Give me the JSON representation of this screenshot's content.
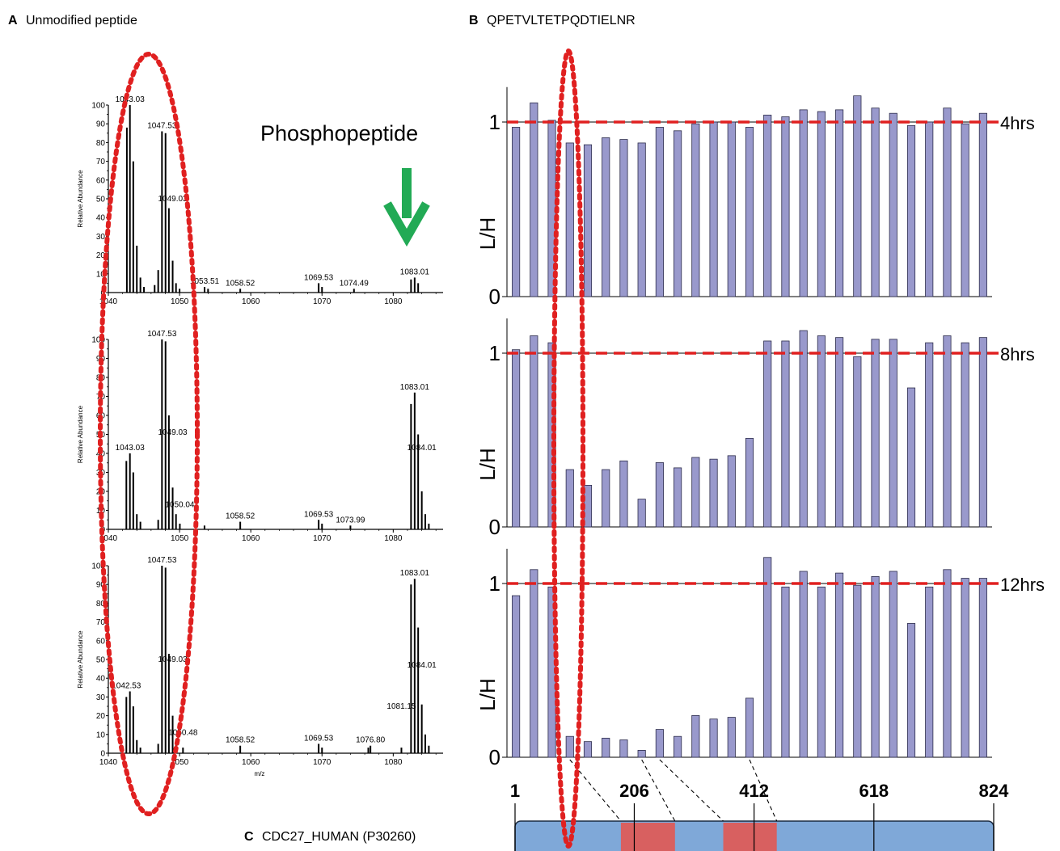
{
  "panels": {
    "a": {
      "letter": "A",
      "title": "Unmodified peptide"
    },
    "b": {
      "letter": "B",
      "title": "QPETVLTETPQDTIELNR"
    },
    "c": {
      "letter": "C",
      "title": "CDC27_HUMAN (P30260)"
    }
  },
  "annotation": {
    "phospho_label": "Phosphopeptide",
    "arrow_color": "#22aa55"
  },
  "colors": {
    "bar": "#9999cc",
    "bar_edge": "#2b2b4a",
    "ref_line": "#e02020",
    "ellipse": "#e02020",
    "protein": "#7fa8d8",
    "domain": "#d86060"
  },
  "chart_data": [
    {
      "type": "bar",
      "subtype": "mass-spectrum",
      "panel": "A-top",
      "xlabel": "",
      "ylabel": "Relative Abundance",
      "xlim": [
        1040,
        1087
      ],
      "ylim": [
        0,
        100
      ],
      "xticks": [
        "1040",
        "1050",
        "1060",
        "1070",
        "1080"
      ],
      "yticks": [
        "0",
        "10",
        "20",
        "30",
        "40",
        "50",
        "60",
        "70",
        "80",
        "90",
        "100"
      ],
      "peaks": [
        [
          1042.6,
          88
        ],
        [
          1043.03,
          100
        ],
        [
          1043.5,
          70
        ],
        [
          1044.0,
          25
        ],
        [
          1044.5,
          8
        ],
        [
          1045.0,
          3
        ],
        [
          1046.5,
          4
        ],
        [
          1047.0,
          12
        ],
        [
          1047.53,
          86
        ],
        [
          1048.03,
          85
        ],
        [
          1048.5,
          45
        ],
        [
          1049.03,
          17
        ],
        [
          1049.5,
          5
        ],
        [
          1050.0,
          2
        ],
        [
          1053.51,
          3
        ],
        [
          1054.0,
          2
        ],
        [
          1058.52,
          2
        ],
        [
          1069.53,
          5
        ],
        [
          1070.0,
          3
        ],
        [
          1074.49,
          2
        ],
        [
          1082.5,
          7
        ],
        [
          1083.01,
          8
        ],
        [
          1083.5,
          5
        ]
      ],
      "peak_labels": [
        [
          "1043.03",
          1043.03,
          100
        ],
        [
          "1047.53",
          1047.53,
          86
        ],
        [
          "1049.03",
          1049.03,
          47
        ],
        [
          "1053.51",
          1053.51,
          3
        ],
        [
          "1058.52",
          1058.52,
          2
        ],
        [
          "1069.53",
          1069.53,
          5
        ],
        [
          "1074.49",
          1074.49,
          2
        ],
        [
          "1083.01",
          1083.01,
          8
        ]
      ]
    },
    {
      "type": "bar",
      "subtype": "mass-spectrum",
      "panel": "A-middle",
      "xlabel": "",
      "ylabel": "Relative Abundance",
      "xlim": [
        1040,
        1087
      ],
      "ylim": [
        0,
        100
      ],
      "xticks": [
        "1040",
        "1050",
        "1060",
        "1070",
        "1080"
      ],
      "yticks": [
        "0",
        "10",
        "20",
        "30",
        "40",
        "50",
        "60",
        "70",
        "80",
        "90",
        "100"
      ],
      "peaks": [
        [
          1042.53,
          36
        ],
        [
          1043.03,
          40
        ],
        [
          1043.5,
          30
        ],
        [
          1044.0,
          8
        ],
        [
          1044.5,
          4
        ],
        [
          1047.0,
          5
        ],
        [
          1047.53,
          100
        ],
        [
          1048.03,
          99
        ],
        [
          1048.5,
          60
        ],
        [
          1049.03,
          22
        ],
        [
          1049.5,
          8
        ],
        [
          1050.04,
          3
        ],
        [
          1053.5,
          2
        ],
        [
          1058.52,
          4
        ],
        [
          1069.53,
          5
        ],
        [
          1070.0,
          3
        ],
        [
          1073.99,
          2
        ],
        [
          1082.5,
          66
        ],
        [
          1083.01,
          72
        ],
        [
          1083.5,
          50
        ],
        [
          1084.01,
          20
        ],
        [
          1084.5,
          8
        ],
        [
          1085.0,
          3
        ]
      ],
      "peak_labels": [
        [
          "1043.03",
          1043.03,
          40
        ],
        [
          "1047.53",
          1047.53,
          100
        ],
        [
          "1049.03",
          1049.03,
          48
        ],
        [
          "1050.04",
          1050.04,
          10
        ],
        [
          "1058.52",
          1058.52,
          4
        ],
        [
          "1069.53",
          1069.53,
          5
        ],
        [
          "1073.99",
          1073.99,
          2
        ],
        [
          "1083.01",
          1083.01,
          72
        ],
        [
          "1084.01",
          1084.01,
          40
        ]
      ]
    },
    {
      "type": "bar",
      "subtype": "mass-spectrum",
      "panel": "A-bottom",
      "xlabel": "m/z",
      "ylabel": "Relative Abundance",
      "xlim": [
        1040,
        1087
      ],
      "ylim": [
        0,
        100
      ],
      "xticks": [
        "1040",
        "1050",
        "1060",
        "1070",
        "1080"
      ],
      "yticks": [
        "0",
        "10",
        "20",
        "30",
        "40",
        "50",
        "60",
        "70",
        "80",
        "90",
        "100"
      ],
      "peaks": [
        [
          1042.53,
          30
        ],
        [
          1043.03,
          33
        ],
        [
          1043.5,
          25
        ],
        [
          1044.0,
          7
        ],
        [
          1044.5,
          3
        ],
        [
          1047.0,
          5
        ],
        [
          1047.53,
          100
        ],
        [
          1048.03,
          99
        ],
        [
          1048.5,
          53
        ],
        [
          1049.03,
          20
        ],
        [
          1049.5,
          7
        ],
        [
          1050.48,
          3
        ],
        [
          1058.52,
          4
        ],
        [
          1069.53,
          5
        ],
        [
          1070.0,
          3
        ],
        [
          1076.5,
          3
        ],
        [
          1076.8,
          4
        ],
        [
          1081.15,
          3
        ],
        [
          1082.5,
          90
        ],
        [
          1083.01,
          93
        ],
        [
          1083.5,
          67
        ],
        [
          1084.01,
          26
        ],
        [
          1084.5,
          10
        ],
        [
          1085.0,
          4
        ]
      ],
      "peak_labels": [
        [
          "1042.53",
          1042.53,
          33
        ],
        [
          "1047.53",
          1047.53,
          100
        ],
        [
          "1049.03",
          1049.03,
          47
        ],
        [
          "1050.48",
          1050.48,
          8
        ],
        [
          "1058.52",
          1058.52,
          4
        ],
        [
          "1069.53",
          1069.53,
          5
        ],
        [
          "1076.80",
          1076.8,
          4
        ],
        [
          "1081.15",
          1081.15,
          22
        ],
        [
          "1083.01",
          1083.01,
          93
        ],
        [
          "1084.01",
          1084.01,
          44
        ]
      ]
    },
    {
      "type": "bar",
      "panel": "B-4hrs",
      "label": "4hrs",
      "ylabel": "L/H",
      "ylim": [
        0,
        1.2
      ],
      "yticks": [
        "0",
        "1"
      ],
      "reference_line": 1,
      "values": [
        0.97,
        1.11,
        1.01,
        0.88,
        0.87,
        0.91,
        0.9,
        0.88,
        0.97,
        0.95,
        0.99,
        1.0,
        1.0,
        0.97,
        1.04,
        1.03,
        1.07,
        1.06,
        1.07,
        1.15,
        1.08,
        1.05,
        0.98,
        1.0,
        1.08,
        0.99,
        1.05
      ]
    },
    {
      "type": "bar",
      "panel": "B-8hrs",
      "label": "8hrs",
      "ylabel": "L/H",
      "ylim": [
        0,
        1.2
      ],
      "yticks": [
        "0",
        "1"
      ],
      "reference_line": 1,
      "values": [
        1.02,
        1.1,
        1.06,
        0.33,
        0.24,
        0.33,
        0.38,
        0.16,
        0.37,
        0.34,
        0.4,
        0.39,
        0.41,
        0.51,
        1.07,
        1.07,
        1.13,
        1.1,
        1.09,
        0.98,
        1.08,
        1.08,
        0.8,
        1.06,
        1.1,
        1.06,
        1.09
      ]
    },
    {
      "type": "bar",
      "panel": "B-12hrs",
      "label": "12hrs",
      "ylabel": "L/H",
      "ylim": [
        0,
        1.2
      ],
      "yticks": [
        "0",
        "1"
      ],
      "reference_line": 1,
      "values": [
        0.93,
        1.08,
        0.98,
        0.12,
        0.09,
        0.11,
        0.1,
        0.04,
        0.16,
        0.12,
        0.24,
        0.22,
        0.23,
        0.34,
        1.15,
        0.98,
        1.07,
        0.98,
        1.06,
        0.99,
        1.04,
        1.07,
        0.77,
        0.98,
        1.08,
        1.03,
        1.03
      ]
    }
  ],
  "protein_map": {
    "positions": [
      "1",
      "206",
      "412",
      "618",
      "824"
    ],
    "length": 824,
    "domains": [
      [
        183,
        276
      ],
      [
        359,
        451
      ]
    ]
  }
}
